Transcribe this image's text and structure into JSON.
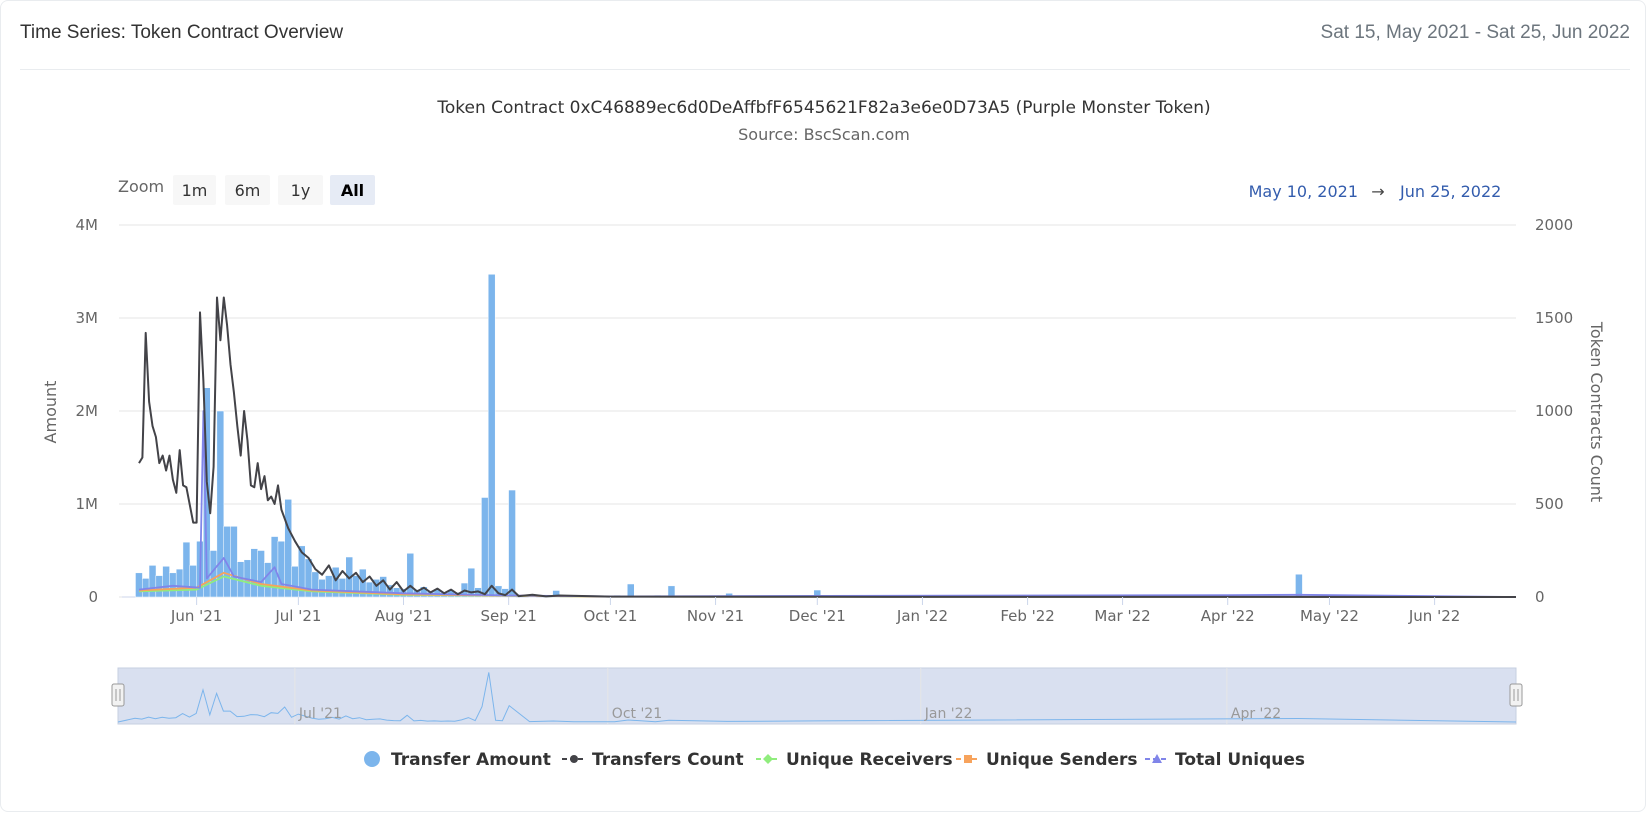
{
  "header": {
    "title": "Time Series: Token Contract Overview",
    "date_range": "Sat 15, May 2021 - Sat 25, Jun 2022"
  },
  "chart": {
    "title": "Token Contract 0xC46889ec6d0DeAffbfF6545621F82a3e6e0D73A5 (Purple Monster Token)",
    "subtitle": "Source: BscScan.com",
    "zoom_label": "Zoom",
    "zoom_buttons": [
      "1m",
      "6m",
      "1y",
      "All"
    ],
    "zoom_selected": "All",
    "range_from": "May 10, 2021",
    "range_arrow": "→",
    "range_to": "Jun 25, 2022"
  },
  "colors": {
    "transfer_amount": "#7cb5ec",
    "transfers_count": "#434348",
    "unique_receivers": "#90ed7d",
    "unique_senders": "#f7a35c",
    "total_uniques": "#8085e9",
    "navigator_bg": "#ccd6eb"
  },
  "chart_data": {
    "type": "bar",
    "xlabel": "",
    "x_ticks": [
      "Jun '21",
      "Jul '21",
      "Aug '21",
      "Sep '21",
      "Oct '21",
      "Nov '21",
      "Dec '21",
      "Jan '22",
      "Feb '22",
      "Mar '22",
      "Apr '22",
      "May '22",
      "Jun '22"
    ],
    "y_left": {
      "label": "Amount",
      "ticks": [
        "0",
        "1M",
        "2M",
        "3M",
        "4M"
      ],
      "range": [
        0,
        4000000
      ]
    },
    "y_right": {
      "label": "Token Contracts Count",
      "ticks": [
        "0",
        "500",
        "1000",
        "1500",
        "2000"
      ],
      "range": [
        0,
        2000
      ]
    },
    "navigator_ticks": [
      "Jul '21",
      "Oct '21",
      "Jan '22",
      "Apr '22"
    ],
    "legend": [
      "Transfer Amount",
      "Transfers Count",
      "Unique Receivers",
      "Unique Senders",
      "Total Uniques"
    ],
    "legend_position": "bottom",
    "grid": true,
    "series": [
      {
        "name": "Transfer Amount",
        "type": "column",
        "axis": "left",
        "points": [
          [
            "2021-05-15",
            260000
          ],
          [
            "2021-05-17",
            200000
          ],
          [
            "2021-05-19",
            340000
          ],
          [
            "2021-05-21",
            230000
          ],
          [
            "2021-05-23",
            330000
          ],
          [
            "2021-05-25",
            260000
          ],
          [
            "2021-05-27",
            300000
          ],
          [
            "2021-05-29",
            590000
          ],
          [
            "2021-05-31",
            340000
          ],
          [
            "2021-06-02",
            600000
          ],
          [
            "2021-06-04",
            2250000
          ],
          [
            "2021-06-06",
            500000
          ],
          [
            "2021-06-08",
            2000000
          ],
          [
            "2021-06-10",
            760000
          ],
          [
            "2021-06-12",
            760000
          ],
          [
            "2021-06-14",
            380000
          ],
          [
            "2021-06-16",
            400000
          ],
          [
            "2021-06-18",
            520000
          ],
          [
            "2021-06-20",
            500000
          ],
          [
            "2021-06-22",
            370000
          ],
          [
            "2021-06-24",
            650000
          ],
          [
            "2021-06-26",
            600000
          ],
          [
            "2021-06-28",
            1050000
          ],
          [
            "2021-06-30",
            330000
          ],
          [
            "2021-07-02",
            550000
          ],
          [
            "2021-07-04",
            410000
          ],
          [
            "2021-07-06",
            270000
          ],
          [
            "2021-07-08",
            190000
          ],
          [
            "2021-07-10",
            230000
          ],
          [
            "2021-07-12",
            320000
          ],
          [
            "2021-07-14",
            200000
          ],
          [
            "2021-07-16",
            430000
          ],
          [
            "2021-07-18",
            230000
          ],
          [
            "2021-07-20",
            300000
          ],
          [
            "2021-07-22",
            160000
          ],
          [
            "2021-07-24",
            190000
          ],
          [
            "2021-07-26",
            220000
          ],
          [
            "2021-07-28",
            130000
          ],
          [
            "2021-07-30",
            100000
          ],
          [
            "2021-08-01",
            90000
          ],
          [
            "2021-08-03",
            470000
          ],
          [
            "2021-08-05",
            80000
          ],
          [
            "2021-08-07",
            110000
          ],
          [
            "2021-08-09",
            60000
          ],
          [
            "2021-08-11",
            80000
          ],
          [
            "2021-08-13",
            50000
          ],
          [
            "2021-08-15",
            70000
          ],
          [
            "2021-08-17",
            50000
          ],
          [
            "2021-08-19",
            150000
          ],
          [
            "2021-08-21",
            310000
          ],
          [
            "2021-08-23",
            100000
          ],
          [
            "2021-08-25",
            1070000
          ],
          [
            "2021-08-27",
            3470000
          ],
          [
            "2021-08-29",
            120000
          ],
          [
            "2021-08-31",
            90000
          ],
          [
            "2021-09-02",
            1150000
          ],
          [
            "2021-09-08",
            30000
          ],
          [
            "2021-09-15",
            70000
          ],
          [
            "2021-09-21",
            20000
          ],
          [
            "2021-10-03",
            20000
          ],
          [
            "2021-10-07",
            140000
          ],
          [
            "2021-10-15",
            20000
          ],
          [
            "2021-10-19",
            120000
          ],
          [
            "2021-11-05",
            40000
          ],
          [
            "2021-12-01",
            75000
          ],
          [
            "2022-04-22",
            245000
          ]
        ]
      },
      {
        "name": "Transfers Count",
        "type": "line",
        "axis": "right",
        "points": [
          [
            "2021-05-15",
            720
          ],
          [
            "2021-05-16",
            750
          ],
          [
            "2021-05-17",
            1420
          ],
          [
            "2021-05-18",
            1050
          ],
          [
            "2021-05-19",
            920
          ],
          [
            "2021-05-20",
            860
          ],
          [
            "2021-05-21",
            720
          ],
          [
            "2021-05-22",
            760
          ],
          [
            "2021-05-23",
            680
          ],
          [
            "2021-05-24",
            760
          ],
          [
            "2021-05-25",
            630
          ],
          [
            "2021-05-26",
            560
          ],
          [
            "2021-05-27",
            790
          ],
          [
            "2021-05-28",
            600
          ],
          [
            "2021-05-29",
            590
          ],
          [
            "2021-05-31",
            400
          ],
          [
            "2021-06-01",
            400
          ],
          [
            "2021-06-02",
            1530
          ],
          [
            "2021-06-03",
            1160
          ],
          [
            "2021-06-04",
            620
          ],
          [
            "2021-06-05",
            450
          ],
          [
            "2021-06-06",
            700
          ],
          [
            "2021-06-07",
            1610
          ],
          [
            "2021-06-08",
            1380
          ],
          [
            "2021-06-09",
            1610
          ],
          [
            "2021-06-10",
            1460
          ],
          [
            "2021-06-11",
            1250
          ],
          [
            "2021-06-12",
            1100
          ],
          [
            "2021-06-13",
            920
          ],
          [
            "2021-06-14",
            760
          ],
          [
            "2021-06-15",
            1000
          ],
          [
            "2021-06-16",
            840
          ],
          [
            "2021-06-17",
            600
          ],
          [
            "2021-06-18",
            590
          ],
          [
            "2021-06-19",
            720
          ],
          [
            "2021-06-20",
            580
          ],
          [
            "2021-06-21",
            650
          ],
          [
            "2021-06-22",
            520
          ],
          [
            "2021-06-23",
            540
          ],
          [
            "2021-06-24",
            500
          ],
          [
            "2021-06-25",
            600
          ],
          [
            "2021-06-26",
            470
          ],
          [
            "2021-06-28",
            370
          ],
          [
            "2021-06-30",
            300
          ],
          [
            "2021-07-02",
            240
          ],
          [
            "2021-07-04",
            210
          ],
          [
            "2021-07-06",
            150
          ],
          [
            "2021-07-08",
            120
          ],
          [
            "2021-07-10",
            170
          ],
          [
            "2021-07-12",
            90
          ],
          [
            "2021-07-14",
            140
          ],
          [
            "2021-07-16",
            100
          ],
          [
            "2021-07-18",
            130
          ],
          [
            "2021-07-20",
            80
          ],
          [
            "2021-07-22",
            110
          ],
          [
            "2021-07-24",
            60
          ],
          [
            "2021-07-26",
            90
          ],
          [
            "2021-07-28",
            40
          ],
          [
            "2021-07-30",
            80
          ],
          [
            "2021-08-01",
            30
          ],
          [
            "2021-08-03",
            60
          ],
          [
            "2021-08-05",
            30
          ],
          [
            "2021-08-07",
            50
          ],
          [
            "2021-08-09",
            25
          ],
          [
            "2021-08-11",
            45
          ],
          [
            "2021-08-13",
            20
          ],
          [
            "2021-08-15",
            40
          ],
          [
            "2021-08-17",
            15
          ],
          [
            "2021-08-19",
            35
          ],
          [
            "2021-08-21",
            25
          ],
          [
            "2021-08-23",
            30
          ],
          [
            "2021-08-25",
            15
          ],
          [
            "2021-08-27",
            60
          ],
          [
            "2021-08-29",
            20
          ],
          [
            "2021-08-31",
            10
          ],
          [
            "2021-09-02",
            40
          ],
          [
            "2021-09-04",
            5
          ],
          [
            "2021-09-08",
            12
          ],
          [
            "2021-09-12",
            3
          ],
          [
            "2021-09-16",
            8
          ],
          [
            "2021-10-01",
            2
          ],
          [
            "2021-12-01",
            1
          ],
          [
            "2022-06-25",
            0
          ]
        ]
      },
      {
        "name": "Unique Receivers",
        "type": "line",
        "axis": "right",
        "points": [
          [
            "2021-05-15",
            30
          ],
          [
            "2021-06-01",
            40
          ],
          [
            "2021-06-09",
            110
          ],
          [
            "2021-06-20",
            60
          ],
          [
            "2021-07-05",
            30
          ],
          [
            "2021-08-01",
            12
          ],
          [
            "2021-09-01",
            6
          ],
          [
            "2021-10-01",
            2
          ],
          [
            "2022-06-25",
            0
          ]
        ]
      },
      {
        "name": "Unique Senders",
        "type": "line",
        "axis": "right",
        "points": [
          [
            "2021-05-15",
            35
          ],
          [
            "2021-06-01",
            50
          ],
          [
            "2021-06-09",
            130
          ],
          [
            "2021-06-20",
            70
          ],
          [
            "2021-07-05",
            35
          ],
          [
            "2021-08-01",
            14
          ],
          [
            "2021-09-01",
            7
          ],
          [
            "2021-10-01",
            2
          ],
          [
            "2022-06-25",
            0
          ]
        ]
      },
      {
        "name": "Total Uniques",
        "type": "line",
        "axis": "right",
        "points": [
          [
            "2021-05-15",
            40
          ],
          [
            "2021-05-25",
            60
          ],
          [
            "2021-06-02",
            50
          ],
          [
            "2021-06-03",
            1000
          ],
          [
            "2021-06-04",
            100
          ],
          [
            "2021-06-09",
            210
          ],
          [
            "2021-06-12",
            110
          ],
          [
            "2021-06-20",
            80
          ],
          [
            "2021-06-24",
            160
          ],
          [
            "2021-06-26",
            70
          ],
          [
            "2021-07-05",
            40
          ],
          [
            "2021-08-01",
            20
          ],
          [
            "2021-09-01",
            8
          ],
          [
            "2021-10-01",
            3
          ],
          [
            "2022-04-01",
            10
          ],
          [
            "2022-04-22",
            12
          ],
          [
            "2022-06-25",
            0
          ]
        ]
      }
    ]
  }
}
